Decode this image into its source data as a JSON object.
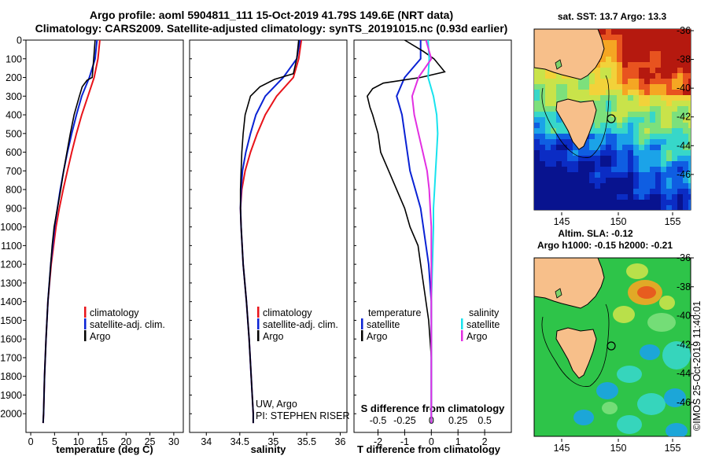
{
  "header": {
    "line1": "Argo profile: aoml 5904811_111 15-Oct-2019 41.79S 149.6E (NRT data)",
    "line2": "Climatology: CARS2009. Satellite-adjusted climatology: synTS_20191015.nc (0.93d earlier)"
  },
  "colors": {
    "climatology": "#e8131a",
    "satellite": "#0a22d4",
    "argo": "#000000",
    "sal_satellite": "#18e3ee",
    "sal_argo": "#e22fe2",
    "land": "#f7bf8a"
  },
  "legend": {
    "climatology": "climatology",
    "satellite_adj": "satellite-adj. clim.",
    "argo": "Argo",
    "temperature": "temperature",
    "salinity": "salinity",
    "satellite": "satellite"
  },
  "credit": {
    "line1": "UW, Argo",
    "line2": "PI: STEPHEN RISER"
  },
  "watermark": "©IMOS 25-Oct-2019 11:40:01",
  "maps": {
    "sst_title": "sat. SST: 13.7 Argo: 13.3",
    "sla_title1": "Altim. SLA: -0.12",
    "sla_title2": "Argo h1000: -0.15 h2000: -0.21",
    "lon_ticks": [
      "145",
      "150",
      "155"
    ],
    "lat_ticks": [
      "-36",
      "-38",
      "-40",
      "-42",
      "-44",
      "-46"
    ]
  },
  "chart_data": [
    {
      "type": "line",
      "panel": "temperature",
      "xlabel": "temperature (deg C)",
      "ylabel": "",
      "xlim": [
        -1,
        32
      ],
      "ylim": [
        2100,
        0
      ],
      "x_ticks": [
        "0",
        "5",
        "10",
        "15",
        "20",
        "25",
        "30"
      ],
      "y_ticks": [
        "0",
        "100",
        "200",
        "300",
        "400",
        "500",
        "600",
        "700",
        "800",
        "900",
        "1000",
        "1100",
        "1200",
        "1300",
        "1400",
        "1500",
        "1600",
        "1700",
        "1800",
        "1900",
        "2000"
      ],
      "series": [
        {
          "name": "climatology",
          "depth": [
            0,
            100,
            200,
            300,
            400,
            500,
            600,
            700,
            800,
            900,
            1000,
            1200,
            1400,
            1600,
            1800,
            2000,
            2050
          ],
          "values": [
            14.5,
            14.1,
            13.3,
            12.0,
            10.7,
            9.6,
            8.6,
            7.7,
            6.8,
            6.0,
            5.3,
            4.3,
            3.6,
            3.2,
            2.9,
            2.7,
            2.6
          ]
        },
        {
          "name": "satellite-adj. clim.",
          "depth": [
            0,
            100,
            200,
            300,
            400,
            500,
            600,
            700,
            800,
            900,
            1000,
            1200,
            1400,
            1600,
            1800,
            2000,
            2050
          ],
          "values": [
            13.9,
            13.5,
            12.3,
            10.7,
            9.6,
            8.6,
            7.7,
            6.9,
            6.2,
            5.6,
            5.0,
            4.2,
            3.6,
            3.2,
            2.9,
            2.7,
            2.6
          ]
        },
        {
          "name": "Argo",
          "depth": [
            0,
            100,
            170,
            200,
            215,
            250,
            300,
            400,
            500,
            600,
            700,
            800,
            900,
            1000,
            1100,
            1200,
            1400,
            1600,
            1800,
            2000,
            2050
          ],
          "values": [
            13.5,
            13.2,
            13.0,
            12.9,
            11.8,
            10.8,
            10.2,
            9.1,
            8.3,
            7.6,
            6.9,
            6.3,
            5.6,
            4.9,
            4.5,
            4.2,
            3.6,
            3.2,
            2.9,
            2.7,
            2.6
          ]
        }
      ]
    },
    {
      "type": "line",
      "panel": "salinity",
      "xlabel": "salinity",
      "ylabel": "",
      "xlim": [
        33.75,
        36.1
      ],
      "ylim": [
        2100,
        0
      ],
      "x_ticks": [
        "34",
        "34.5",
        "35",
        "35.5",
        "36"
      ],
      "series": [
        {
          "name": "climatology",
          "depth": [
            0,
            100,
            200,
            300,
            400,
            500,
            600,
            700,
            800,
            900,
            1000,
            1200,
            1400,
            1600,
            1800,
            2000,
            2050
          ],
          "values": [
            35.42,
            35.38,
            35.3,
            35.05,
            34.88,
            34.76,
            34.66,
            34.58,
            34.53,
            34.51,
            34.52,
            34.55,
            34.6,
            34.64,
            34.67,
            34.7,
            34.7
          ]
        },
        {
          "name": "satellite-adj. clim.",
          "depth": [
            0,
            100,
            200,
            300,
            400,
            500,
            600,
            700,
            800,
            900,
            1000,
            1200,
            1400,
            1600,
            1800,
            2000,
            2050
          ],
          "values": [
            35.4,
            35.35,
            35.15,
            34.88,
            34.74,
            34.66,
            34.59,
            34.54,
            34.52,
            34.51,
            34.52,
            34.55,
            34.6,
            34.64,
            34.67,
            34.7,
            34.7
          ]
        },
        {
          "name": "Argo",
          "depth": [
            0,
            100,
            180,
            210,
            250,
            300,
            400,
            500,
            600,
            700,
            800,
            900,
            1000,
            1200,
            1400,
            1600,
            1800,
            2000,
            2050
          ],
          "values": [
            35.38,
            35.35,
            35.3,
            35.02,
            34.8,
            34.66,
            34.58,
            34.55,
            34.53,
            34.52,
            34.51,
            34.51,
            34.52,
            34.55,
            34.6,
            34.64,
            34.67,
            34.7,
            34.7
          ]
        }
      ]
    },
    {
      "type": "line",
      "panel": "difference",
      "xlabel": "T difference from climatology",
      "ylabel": "",
      "xlim": [
        -2.9,
        3.0
      ],
      "ylim": [
        2100,
        0
      ],
      "x_ticks": [
        "-2",
        "-1",
        "0",
        "1",
        "2"
      ],
      "top_axis_label": "S difference from climatology",
      "top_ticks": [
        "-0.5",
        "-0.25",
        "0",
        "0.25",
        "0.5"
      ],
      "top_lim": [
        -0.725,
        0.75
      ],
      "series": [
        {
          "name": "temperature satellite",
          "depth": [
            0,
            100,
            200,
            300,
            400,
            500,
            600,
            700,
            800,
            900,
            1000,
            1200,
            1400,
            1600,
            1800,
            2000,
            2050
          ],
          "values": [
            -0.4,
            -0.4,
            -1.0,
            -1.3,
            -1.1,
            -1.0,
            -0.9,
            -0.8,
            -0.6,
            -0.4,
            -0.3,
            -0.1,
            0.0,
            0.0,
            0.0,
            0.0,
            0.0
          ]
        },
        {
          "name": "temperature Argo",
          "depth": [
            0,
            60,
            100,
            170,
            200,
            230,
            260,
            300,
            360,
            400,
            500,
            600,
            700,
            800,
            900,
            1000,
            1100,
            1200,
            1300,
            1400,
            1500,
            1600,
            1700,
            1800,
            1900,
            2000,
            2050
          ],
          "values": [
            -1.0,
            -0.3,
            0.1,
            0.5,
            -0.4,
            -1.8,
            -2.2,
            -2.4,
            -2.3,
            -2.2,
            -2.0,
            -1.9,
            -1.6,
            -1.3,
            -1.0,
            -0.8,
            -0.5,
            -0.4,
            -0.3,
            -0.2,
            -0.1,
            -0.05,
            0.0,
            0.0,
            0.0,
            0.0,
            0.0
          ]
        },
        {
          "name": "salinity satellite",
          "depth": [
            0,
            100,
            200,
            300,
            400,
            500,
            600,
            700,
            800,
            900,
            1000,
            1200,
            1400,
            1600,
            1800,
            2000,
            2050
          ],
          "values": [
            -0.03,
            -0.02,
            -0.03,
            0.02,
            0.05,
            0.06,
            0.05,
            0.04,
            0.03,
            0.02,
            0.02,
            0.01,
            0.0,
            0.0,
            0.0,
            0.0,
            0.0
          ]
        },
        {
          "name": "salinity Argo",
          "depth": [
            0,
            100,
            200,
            300,
            400,
            500,
            600,
            700,
            800,
            900,
            1000,
            1200,
            1400,
            1600,
            1800,
            2000,
            2050
          ],
          "values": [
            -0.05,
            0.0,
            -0.12,
            -0.18,
            -0.16,
            -0.12,
            -0.08,
            -0.04,
            -0.02,
            -0.01,
            0.0,
            0.0,
            0.0,
            0.0,
            0.0,
            0.0,
            0.0
          ]
        }
      ]
    }
  ]
}
